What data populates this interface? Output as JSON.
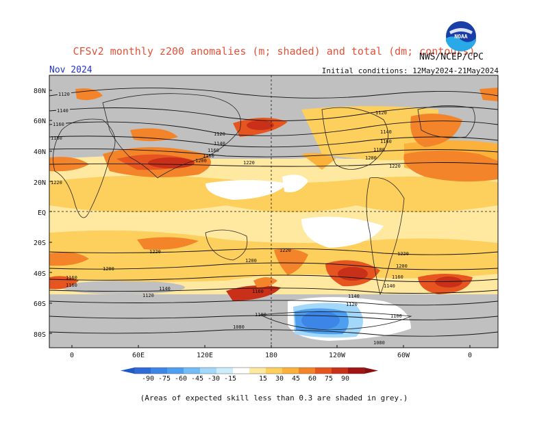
{
  "header": {
    "title": "CFSv2 monthly z200 anomalies (m; shaded) and total (dm; contours)",
    "org": "NWS/NCEP/CPC",
    "month": "Nov 2024",
    "initial_conditions": "Initial conditions: 12May2024-21May2024",
    "logo_text": "NOAA"
  },
  "map": {
    "lat_labels": [
      "80N",
      "60N",
      "40N",
      "20N",
      "EQ",
      "20S",
      "40S",
      "60S",
      "80S"
    ],
    "lon_labels": [
      "0",
      "60E",
      "120E",
      "180",
      "120W",
      "60W",
      "0"
    ],
    "contour_labels": [
      "1120",
      "1140",
      "1160",
      "1180",
      "1200",
      "1220",
      "1080",
      "1100"
    ]
  },
  "colorbar": {
    "ticks": [
      "-90",
      "-75",
      "-60",
      "-45",
      "-30",
      "-15",
      "15",
      "30",
      "45",
      "60",
      "75",
      "90"
    ],
    "colors": [
      "#2f6ad8",
      "#3d86e8",
      "#4f9ff0",
      "#72bdf7",
      "#a3d8fa",
      "#cceefc",
      "#ffffff",
      "#ffe8a0",
      "#fdcf5c",
      "#fbb13a",
      "#f4842a",
      "#e6551f",
      "#c9301a",
      "#a01512"
    ]
  },
  "caption": "(Areas of expected skill less than 0.3 are shaded in grey.)"
}
